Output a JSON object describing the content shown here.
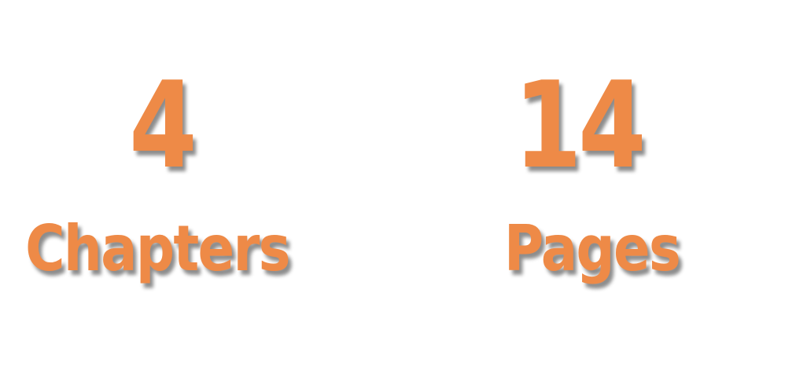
{
  "stats": [
    {
      "value": "4",
      "label": "Chapters"
    },
    {
      "value": "14",
      "label": "Pages"
    }
  ],
  "colors": {
    "accent": "#ee8a47",
    "background": "#ffffff"
  }
}
